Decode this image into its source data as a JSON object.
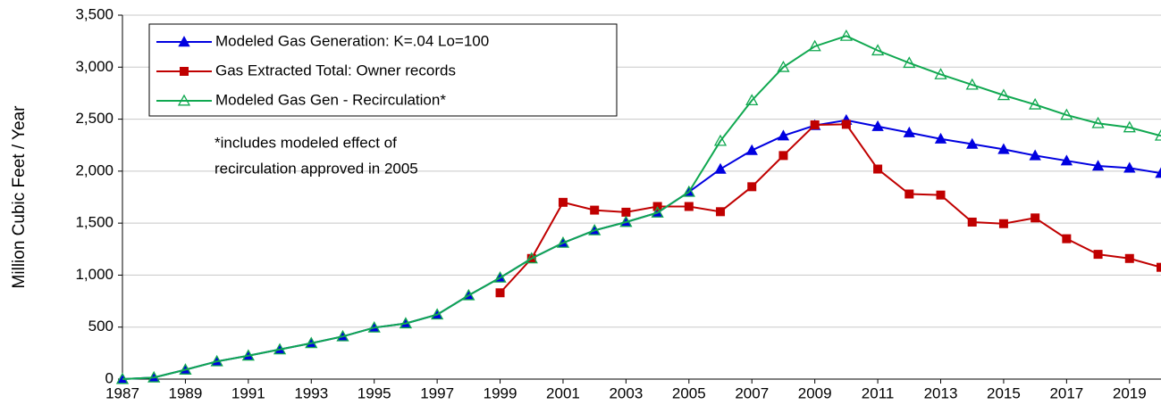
{
  "chart_data": {
    "type": "line",
    "y_label": "Million Cubic Feet / Year",
    "annotation": [
      "*includes modeled effect of",
      "recirculation approved in 2005"
    ],
    "x": [
      1987,
      1988,
      1989,
      1990,
      1991,
      1992,
      1993,
      1994,
      1995,
      1996,
      1997,
      1998,
      1999,
      2000,
      2001,
      2002,
      2003,
      2004,
      2005,
      2006,
      2007,
      2008,
      2009,
      2010,
      2011,
      2012,
      2013,
      2014,
      2015,
      2016,
      2017,
      2018,
      2019,
      2020
    ],
    "xlim": [
      1987,
      2020
    ],
    "xticks": [
      1987,
      1989,
      1991,
      1993,
      1995,
      1997,
      1999,
      2001,
      2003,
      2005,
      2007,
      2009,
      2011,
      2013,
      2015,
      2017,
      2019
    ],
    "ylim": [
      0,
      3500
    ],
    "yticks": [
      0,
      500,
      {
        "value": 1000,
        "label": "1,000"
      },
      {
        "value": 1500,
        "label": "1,500"
      },
      {
        "value": 2000,
        "label": "2,000"
      },
      {
        "value": 2500,
        "label": "2,500"
      },
      {
        "value": 3000,
        "label": "3,000"
      },
      {
        "value": 3500,
        "label": "3,500"
      }
    ],
    "grid": true,
    "legend": "upper left",
    "series": [
      {
        "name": "Modeled Gas Generation: K=.04 Lo=100",
        "color": "#0000e0",
        "marker": "triangle-filled",
        "values": [
          0,
          15,
          90,
          170,
          225,
          285,
          345,
          410,
          495,
          535,
          620,
          805,
          975,
          1160,
          1310,
          1430,
          1510,
          1600,
          1800,
          2020,
          2200,
          2340,
          2440,
          2490,
          2430,
          2370,
          2310,
          2260,
          2210,
          2150,
          2100,
          2050,
          2030,
          1980
        ]
      },
      {
        "name": "Gas Extracted Total: Owner records",
        "color": "#c00000",
        "marker": "square-filled",
        "values": [
          null,
          null,
          null,
          null,
          null,
          null,
          null,
          null,
          null,
          null,
          null,
          null,
          830,
          1160,
          1700,
          1625,
          1605,
          1660,
          1660,
          1610,
          1850,
          2150,
          2445,
          2450,
          2020,
          1780,
          1770,
          1510,
          1495,
          1550,
          1350,
          1200,
          1160,
          1075
        ]
      },
      {
        "name": "Modeled Gas Gen - Recirculation*",
        "color": "#10a850",
        "marker": "triangle-open",
        "values": [
          0,
          15,
          90,
          170,
          225,
          285,
          345,
          410,
          495,
          535,
          620,
          805,
          975,
          1160,
          1310,
          1430,
          1510,
          1600,
          1800,
          2290,
          2680,
          3000,
          3200,
          3300,
          3160,
          3040,
          2930,
          2830,
          2730,
          2640,
          2540,
          2460,
          2420,
          2340
        ]
      }
    ]
  }
}
